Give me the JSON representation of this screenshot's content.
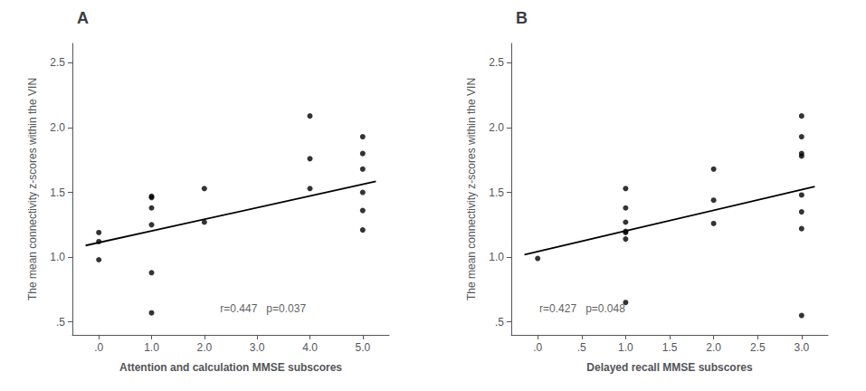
{
  "chart_data": [
    {
      "type": "scatter",
      "title": "A",
      "xlabel": "Attention and calculation MMSE subscores",
      "ylabel": "The mean connectivity z-scores within the VIN",
      "series": [
        {
          "type": "scatter",
          "color": "#000000",
          "x": [
            0.0,
            0.0,
            0.0,
            1.0,
            1.0,
            1.0,
            1.0,
            1.0,
            2.0,
            2.0,
            4.0,
            4.0,
            4.0,
            5.0,
            5.0,
            5.0,
            5.0,
            5.0,
            5.0,
            1.0
          ],
          "values": [
            1.19,
            1.12,
            0.98,
            1.47,
            1.46,
            1.38,
            1.25,
            0.88,
            1.53,
            1.27,
            2.09,
            1.76,
            1.53,
            1.93,
            1.8,
            1.68,
            1.5,
            1.36,
            1.21,
            0.57
          ]
        },
        {
          "type": "line",
          "color": "#000000",
          "x": [
            -0.25,
            5.25
          ],
          "values": [
            1.09,
            1.585
          ]
        }
      ],
      "xlim": [
        -0.5,
        5.5
      ],
      "ylim": [
        0.4,
        2.65
      ],
      "xticks": [
        {
          "value": 0.0,
          "label": ".0"
        },
        {
          "value": 1.0,
          "label": "1.0"
        },
        {
          "value": 2.0,
          "label": "2.0"
        },
        {
          "value": 3.0,
          "label": "3.0"
        },
        {
          "value": 4.0,
          "label": "4.0"
        },
        {
          "value": 5.0,
          "label": "5.0"
        }
      ],
      "yticks": [
        {
          "value": 0.5,
          "label": ".5"
        },
        {
          "value": 1.0,
          "label": "1.0"
        },
        {
          "value": 1.5,
          "label": "1.5"
        },
        {
          "value": 2.0,
          "label": "2.0"
        },
        {
          "value": 2.5,
          "label": "2.5"
        }
      ],
      "annotations": [
        {
          "text": "r=0.447   p=0.037",
          "x": 2.3,
          "y": 0.56
        }
      ],
      "grid": false
    },
    {
      "type": "scatter",
      "title": "B",
      "xlabel": "Delayed recall MMSE subscores",
      "ylabel": "The mean connectivity z-scores within the VIN",
      "series": [
        {
          "type": "scatter",
          "color": "#000000",
          "x": [
            0.0,
            1.0,
            1.0,
            1.0,
            1.0,
            1.0,
            1.0,
            2.0,
            2.0,
            2.0,
            3.0,
            3.0,
            3.0,
            3.0,
            3.0,
            3.0,
            3.0,
            1.0,
            3.0
          ],
          "values": [
            0.99,
            1.53,
            1.38,
            1.27,
            1.2,
            1.19,
            1.14,
            1.68,
            1.44,
            1.26,
            2.09,
            1.93,
            1.8,
            1.78,
            1.48,
            1.35,
            1.22,
            0.65,
            0.55
          ]
        },
        {
          "type": "line",
          "color": "#000000",
          "x": [
            -0.15,
            3.15
          ],
          "values": [
            1.02,
            1.545
          ]
        }
      ],
      "xlim": [
        -0.3,
        3.3
      ],
      "ylim": [
        0.4,
        2.65
      ],
      "xticks": [
        {
          "value": 0.0,
          "label": ".0"
        },
        {
          "value": 0.5,
          "label": ".5"
        },
        {
          "value": 1.0,
          "label": "1.0"
        },
        {
          "value": 1.5,
          "label": "1.5"
        },
        {
          "value": 2.0,
          "label": "2.0"
        },
        {
          "value": 2.5,
          "label": "2.5"
        },
        {
          "value": 3.0,
          "label": "3.0"
        }
      ],
      "yticks": [
        {
          "value": 0.5,
          "label": ".5"
        },
        {
          "value": 1.0,
          "label": "1.0"
        },
        {
          "value": 1.5,
          "label": "1.5"
        },
        {
          "value": 2.0,
          "label": "2.0"
        },
        {
          "value": 2.5,
          "label": "2.5"
        }
      ],
      "annotations": [
        {
          "text": "r=0.427   p=0.048",
          "x": 0.02,
          "y": 0.56
        }
      ],
      "grid": false
    }
  ]
}
